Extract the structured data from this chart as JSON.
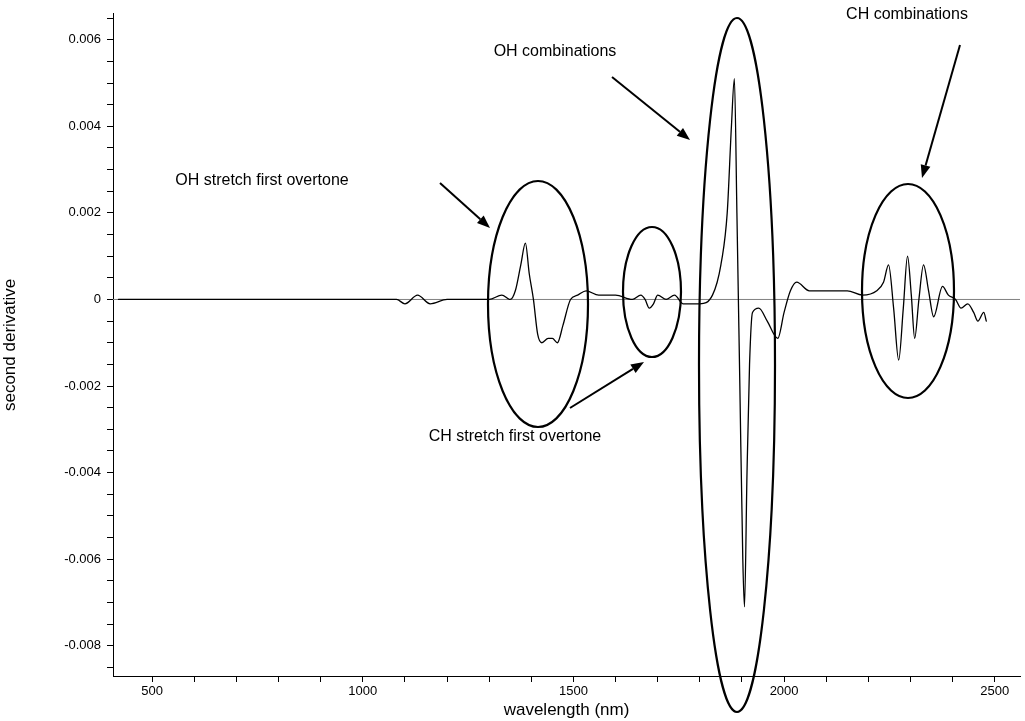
{
  "chart_data": {
    "type": "line",
    "xlabel": "wavelength (nm)",
    "ylabel": "second derivative",
    "xlim": [
      407,
      2560
    ],
    "ylim": [
      -0.0087,
      0.0066
    ],
    "xticks": [
      500,
      {
        "value": 600,
        "label": null
      },
      {
        "value": 700,
        "label": null
      },
      {
        "value": 800,
        "label": null
      },
      {
        "value": 900,
        "label": null
      },
      1000,
      {
        "value": 1100,
        "label": null
      },
      {
        "value": 1200,
        "label": null
      },
      {
        "value": 1300,
        "label": null
      },
      {
        "value": 1400,
        "label": null
      },
      1500,
      {
        "value": 1600,
        "label": null
      },
      {
        "value": 1700,
        "label": null
      },
      {
        "value": 1800,
        "label": null
      },
      {
        "value": 1900,
        "label": null
      },
      2000,
      {
        "value": 2100,
        "label": null
      },
      {
        "value": 2200,
        "label": null
      },
      {
        "value": 2300,
        "label": null
      },
      {
        "value": 2400,
        "label": null
      },
      2500
    ],
    "yticks": [
      {
        "value": -0.0085,
        "label": null
      },
      -0.008,
      {
        "value": -0.0075,
        "label": null
      },
      {
        "value": -0.007,
        "label": null
      },
      {
        "value": -0.0065,
        "label": null
      },
      -0.006,
      {
        "value": -0.0055,
        "label": null
      },
      {
        "value": -0.005,
        "label": null
      },
      {
        "value": -0.0045,
        "label": null
      },
      -0.004,
      {
        "value": -0.0035,
        "label": null
      },
      {
        "value": -0.003,
        "label": null
      },
      {
        "value": -0.0025,
        "label": null
      },
      -0.002,
      {
        "value": -0.0015,
        "label": null
      },
      {
        "value": -0.001,
        "label": null
      },
      {
        "value": -0.0005,
        "label": null
      },
      0,
      {
        "value": 0.0005,
        "label": null
      },
      {
        "value": 0.001,
        "label": null
      },
      {
        "value": 0.0015,
        "label": null
      },
      0.002,
      {
        "value": 0.0025,
        "label": null
      },
      {
        "value": 0.003,
        "label": null
      },
      {
        "value": 0.0035,
        "label": null
      },
      0.004,
      {
        "value": 0.0045,
        "label": null
      },
      {
        "value": 0.005,
        "label": null
      },
      {
        "value": 0.0055,
        "label": null
      },
      0.006,
      {
        "value": 0.0065,
        "label": null
      }
    ],
    "grid": false,
    "legend": false,
    "marker": "none",
    "line_style": "solid",
    "ref_lines": [
      {
        "axis": "y",
        "value": 0,
        "color": "#808080"
      }
    ],
    "annotations": [
      "OH stretch first overtone",
      "CH stretch first overtone",
      "OH combinations",
      "CH combinations"
    ],
    "series": [
      {
        "color": "#000000",
        "x": [
          420,
          500,
          560,
          600,
          950,
          1000,
          1050,
          1080,
          1100,
          1130,
          1160,
          1200,
          1250,
          1300,
          1330,
          1350,
          1362,
          1375,
          1386,
          1395,
          1405,
          1415,
          1425,
          1440,
          1450,
          1462,
          1475,
          1493,
          1510,
          1530,
          1560,
          1600,
          1640,
          1660,
          1670,
          1680,
          1690,
          1700,
          1720,
          1740,
          1760,
          1775,
          1800,
          1830,
          1850,
          1865,
          1875,
          1882,
          1888,
          1895,
          1902,
          1906,
          1912,
          1918,
          1925,
          1940,
          1960,
          1985,
          2000,
          2015,
          2030,
          2060,
          2100,
          2150,
          2186,
          2220,
          2236,
          2248,
          2260,
          2272,
          2283,
          2293,
          2302,
          2310,
          2320,
          2331,
          2343,
          2355,
          2376,
          2390,
          2407,
          2420,
          2436,
          2450,
          2460,
          2474,
          2480
        ],
        "values": [
          0,
          0,
          0,
          0,
          0,
          0,
          0,
          0,
          -0.0001,
          0.0001,
          -0.0001,
          0,
          0,
          0,
          0.0001,
          0,
          0.0002,
          0.0008,
          0.0013,
          0.0006,
          0,
          -0.0008,
          -0.001,
          -0.0009,
          -0.0009,
          -0.001,
          -0.0006,
          0,
          0.0001,
          0.0002,
          0.0001,
          0.0001,
          0,
          0.0001,
          0,
          -0.0002,
          -0.0001,
          0.0001,
          0,
          0.0001,
          -0.0001,
          -0.0001,
          -0.0001,
          0.0001,
          0.0008,
          0.002,
          0.004,
          0.0051,
          0.002,
          -0.002,
          -0.006,
          -0.0071,
          -0.004,
          -0.0015,
          -0.0003,
          -0.0002,
          -0.0005,
          -0.0009,
          -0.0003,
          0.0002,
          0.0004,
          0.0002,
          0.0002,
          0.0002,
          0.0001,
          0.0002,
          0.0004,
          0.0008,
          -0.0002,
          -0.0014,
          -0.0002,
          0.001,
          0.0001,
          -0.0009,
          0,
          0.0008,
          0.0002,
          -0.0004,
          0.0003,
          0.0001,
          0,
          -0.0002,
          -0.0001,
          -0.0003,
          -0.0005,
          -0.0003,
          -0.0005
        ]
      }
    ]
  }
}
